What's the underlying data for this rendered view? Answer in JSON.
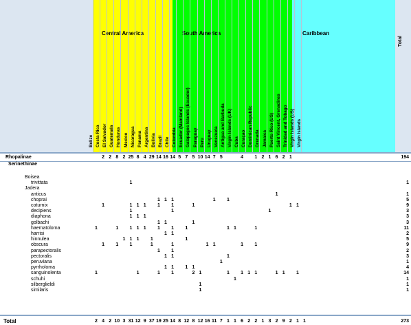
{
  "regions": [
    "Central America",
    "South America",
    "Caribbean"
  ],
  "total_header": "Total",
  "columns": [
    {
      "name": "Belize",
      "region": 0
    },
    {
      "name": "Costa Rica",
      "region": 0
    },
    {
      "name": "El Salvador",
      "region": 0
    },
    {
      "name": "Guatemala",
      "region": 0
    },
    {
      "name": "Honduras",
      "region": 0
    },
    {
      "name": "Mexico",
      "region": 0
    },
    {
      "name": "Nicaragua",
      "region": 0
    },
    {
      "name": "Panama",
      "region": 0
    },
    {
      "name": "Argentina",
      "region": 1
    },
    {
      "name": "Bolivia",
      "region": 1
    },
    {
      "name": "Brazil",
      "region": 1
    },
    {
      "name": "Chile",
      "region": 1
    },
    {
      "name": "Colombia",
      "region": 1
    },
    {
      "name": "Ecuador (Mainland)",
      "region": 1
    },
    {
      "name": "Galapagos Islands (Ecuador)",
      "region": 1
    },
    {
      "name": "Paraguay",
      "region": 1
    },
    {
      "name": "Peru",
      "region": 1
    },
    {
      "name": "Uruguay",
      "region": 1
    },
    {
      "name": "Venezuela",
      "region": 1
    },
    {
      "name": "Antigua and Barbuda",
      "region": 2
    },
    {
      "name": "Virgin Islands (UK)",
      "region": 2
    },
    {
      "name": "Cuba",
      "region": 2
    },
    {
      "name": "Curaçao",
      "region": 2
    },
    {
      "name": "Dominican Republic",
      "region": 2
    },
    {
      "name": "Grenada",
      "region": 2
    },
    {
      "name": "Jamaica",
      "region": 2
    },
    {
      "name": "Puerto Rico (US)",
      "region": 2
    },
    {
      "name": "Saint Vincent, Grenadines",
      "region": 2
    },
    {
      "name": "Trinidad and Tobago",
      "region": 2
    },
    {
      "name": "Virgin Islands (US)",
      "region": 2
    },
    {
      "name": "Virgin Islands",
      "region": 2
    }
  ],
  "rhopalinae": {
    "label": "Rhopalinae",
    "values": [
      "",
      "2",
      "2",
      "8",
      "2",
      "25",
      "8",
      "4",
      "29",
      "14",
      "16",
      "14",
      "5",
      "7",
      "5",
      "10",
      "14",
      "7",
      "5",
      "",
      "",
      "4",
      "",
      "1",
      "2",
      "1",
      "6",
      "2",
      "1",
      "",
      ""
    ],
    "total": "194"
  },
  "subfamily": "Serinethinae",
  "genera": [
    {
      "label": "Boisea",
      "row": 0
    },
    {
      "label": "Jadera",
      "row": 2
    }
  ],
  "species": [
    {
      "name": "trivittata",
      "row": 1,
      "cells": [
        {
          "col": 5,
          "v": "1"
        }
      ],
      "total": "1"
    },
    {
      "name": "anticus",
      "row": 3,
      "cells": [
        {
          "col": 26,
          "v": "1"
        }
      ],
      "total": "1"
    },
    {
      "name": "choprai",
      "row": 4,
      "cells": [
        {
          "col": 9,
          "v": "1"
        },
        {
          "col": 10,
          "v": "1"
        },
        {
          "col": 11,
          "v": "1"
        },
        {
          "col": 17,
          "v": "1"
        },
        {
          "col": 19,
          "v": "1"
        }
      ],
      "total": "5"
    },
    {
      "name": "coturnix",
      "row": 5,
      "cells": [
        {
          "col": 1,
          "v": "1"
        },
        {
          "col": 5,
          "v": "1"
        },
        {
          "col": 6,
          "v": "1"
        },
        {
          "col": 7,
          "v": "1"
        },
        {
          "col": 9,
          "v": "1"
        },
        {
          "col": 11,
          "v": "1"
        },
        {
          "col": 14,
          "v": "1"
        },
        {
          "col": 28,
          "v": "1"
        },
        {
          "col": 29,
          "v": "1"
        }
      ],
      "total": "9"
    },
    {
      "name": "decipiens",
      "row": 6,
      "cells": [
        {
          "col": 5,
          "v": "1"
        },
        {
          "col": 11,
          "v": "1"
        },
        {
          "col": 25,
          "v": "1"
        }
      ],
      "total": "3"
    },
    {
      "name": "diaphona",
      "row": 7,
      "cells": [
        {
          "col": 5,
          "v": "1"
        },
        {
          "col": 6,
          "v": "1"
        },
        {
          "col": 7,
          "v": "1"
        }
      ],
      "total": "3"
    },
    {
      "name": "golbachi",
      "row": 8,
      "cells": [
        {
          "col": 9,
          "v": "1"
        },
        {
          "col": 10,
          "v": "1"
        },
        {
          "col": 14,
          "v": "1"
        }
      ],
      "total": "3"
    },
    {
      "name": "haematoloma",
      "row": 9,
      "cells": [
        {
          "col": 0,
          "v": "1"
        },
        {
          "col": 3,
          "v": "1"
        },
        {
          "col": 5,
          "v": "1"
        },
        {
          "col": 6,
          "v": "1"
        },
        {
          "col": 7,
          "v": "1"
        },
        {
          "col": 9,
          "v": "1"
        },
        {
          "col": 11,
          "v": "1"
        },
        {
          "col": 13,
          "v": "1"
        },
        {
          "col": 19,
          "v": "1"
        },
        {
          "col": 20,
          "v": "1"
        },
        {
          "col": 23,
          "v": "1"
        }
      ],
      "total": "11"
    },
    {
      "name": "harrisi",
      "row": 10,
      "cells": [
        {
          "col": 10,
          "v": "1"
        },
        {
          "col": 11,
          "v": "1"
        }
      ],
      "total": "2"
    },
    {
      "name": "hinnulea",
      "row": 11,
      "cells": [
        {
          "col": 4,
          "v": "1"
        },
        {
          "col": 5,
          "v": "1"
        },
        {
          "col": 6,
          "v": "1"
        },
        {
          "col": 8,
          "v": "1"
        },
        {
          "col": 13,
          "v": "1"
        }
      ],
      "total": "5"
    },
    {
      "name": "obscura",
      "row": 12,
      "cells": [
        {
          "col": 1,
          "v": "1"
        },
        {
          "col": 3,
          "v": "1"
        },
        {
          "col": 5,
          "v": "1"
        },
        {
          "col": 8,
          "v": "1"
        },
        {
          "col": 11,
          "v": "1"
        },
        {
          "col": 16,
          "v": "1"
        },
        {
          "col": 17,
          "v": "1"
        },
        {
          "col": 21,
          "v": "1"
        },
        {
          "col": 23,
          "v": "1"
        }
      ],
      "total": "9"
    },
    {
      "name": "parapectoralis",
      "row": 13,
      "cells": [
        {
          "col": 9,
          "v": "1"
        },
        {
          "col": 11,
          "v": "1"
        }
      ],
      "total": "2"
    },
    {
      "name": "pectoralis",
      "row": 14,
      "cells": [
        {
          "col": 10,
          "v": "1"
        },
        {
          "col": 11,
          "v": "1"
        },
        {
          "col": 19,
          "v": "1"
        }
      ],
      "total": "3"
    },
    {
      "name": "peruviana",
      "row": 15,
      "cells": [
        {
          "col": 18,
          "v": "1"
        }
      ],
      "total": "1"
    },
    {
      "name": "pyrrholoma",
      "row": 16,
      "cells": [
        {
          "col": 10,
          "v": "1"
        },
        {
          "col": 11,
          "v": "1"
        },
        {
          "col": 13,
          "v": "1"
        },
        {
          "col": 14,
          "v": "1"
        }
      ],
      "total": "4"
    },
    {
      "name": "sanguinolenta",
      "row": 17,
      "cells": [
        {
          "col": 0,
          "v": "1"
        },
        {
          "col": 6,
          "v": "1"
        },
        {
          "col": 9,
          "v": "1"
        },
        {
          "col": 11,
          "v": "1"
        },
        {
          "col": 14,
          "v": "2"
        },
        {
          "col": 15,
          "v": "1"
        },
        {
          "col": 19,
          "v": "1"
        },
        {
          "col": 21,
          "v": "1"
        },
        {
          "col": 22,
          "v": "1"
        },
        {
          "col": 23,
          "v": "1"
        },
        {
          "col": 26,
          "v": "1"
        },
        {
          "col": 27,
          "v": "1"
        },
        {
          "col": 29,
          "v": "1"
        }
      ],
      "total": "14"
    },
    {
      "name": "schuhi",
      "row": 18,
      "cells": [
        {
          "col": 20,
          "v": "1"
        }
      ],
      "total": "1"
    },
    {
      "name": "silberglieldi",
      "row": 19,
      "cells": [
        {
          "col": 15,
          "v": "1"
        }
      ],
      "total": "1"
    },
    {
      "name": "similaris",
      "row": 20,
      "cells": [
        {
          "col": 15,
          "v": "1"
        }
      ],
      "total": "1"
    }
  ],
  "total_row": {
    "label": "Total",
    "values": [
      "2",
      "4",
      "2",
      "10",
      "3",
      "31",
      "12",
      "9",
      "37",
      "19",
      "25",
      "14",
      "8",
      "12",
      "8",
      "12",
      "16",
      "11",
      "7",
      "1",
      "1",
      "6",
      "2",
      "2",
      "1",
      "3",
      "2",
      "9",
      "2",
      "1",
      "1"
    ],
    "total": "273"
  }
}
